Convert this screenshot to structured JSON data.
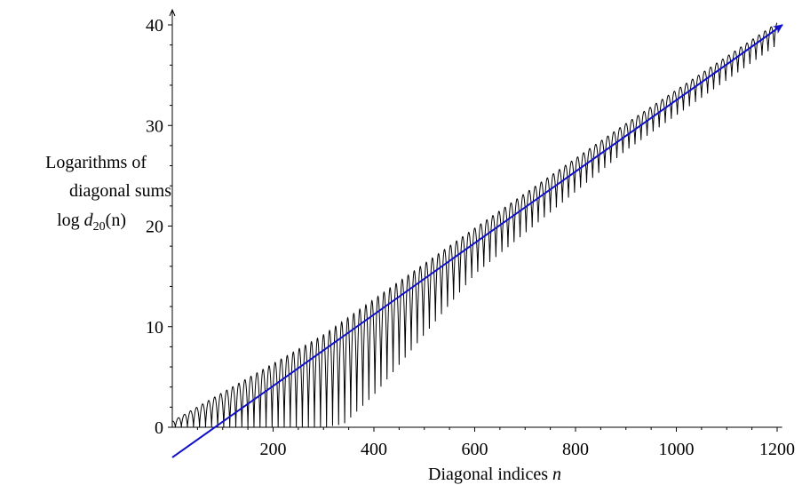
{
  "chart_data": {
    "type": "line",
    "title": "",
    "xlabel": "Diagonal indices",
    "xlabel_var": "n",
    "ylabel_lines": [
      "Logarithms of",
      "diagonal sums"
    ],
    "ylabel_formula": {
      "prefix": "log",
      "func": "d",
      "sub": "20",
      "arg": "(n)"
    },
    "x_ticks": [
      200,
      400,
      600,
      800,
      1000,
      1200
    ],
    "y_ticks": [
      0,
      10,
      20,
      30,
      40
    ],
    "xlim": [
      0,
      1210
    ],
    "ylim": [
      -3,
      41
    ],
    "grid": false,
    "legend": "none",
    "series": [
      {
        "kind": "oscillating",
        "color": "#000000",
        "x_range": [
          1,
          1200
        ],
        "period": 12,
        "upper_envelope": [
          [
            0,
            0.6
          ],
          [
            300,
            9.2
          ],
          [
            600,
            19.8
          ],
          [
            900,
            30.2
          ],
          [
            1200,
            40.2
          ]
        ],
        "lower_envelope": [
          [
            0,
            0
          ],
          [
            100,
            0
          ],
          [
            240,
            0
          ],
          [
            300,
            0
          ],
          [
            340,
            0.3
          ],
          [
            400,
            3.2
          ],
          [
            600,
            15.2
          ],
          [
            900,
            27.5
          ],
          [
            1200,
            38
          ]
        ]
      },
      {
        "kind": "trend-line",
        "color": "#1010c8",
        "x": [
          0,
          1200
        ],
        "y": [
          -3,
          40
        ],
        "arrow_at_end": true
      }
    ]
  }
}
